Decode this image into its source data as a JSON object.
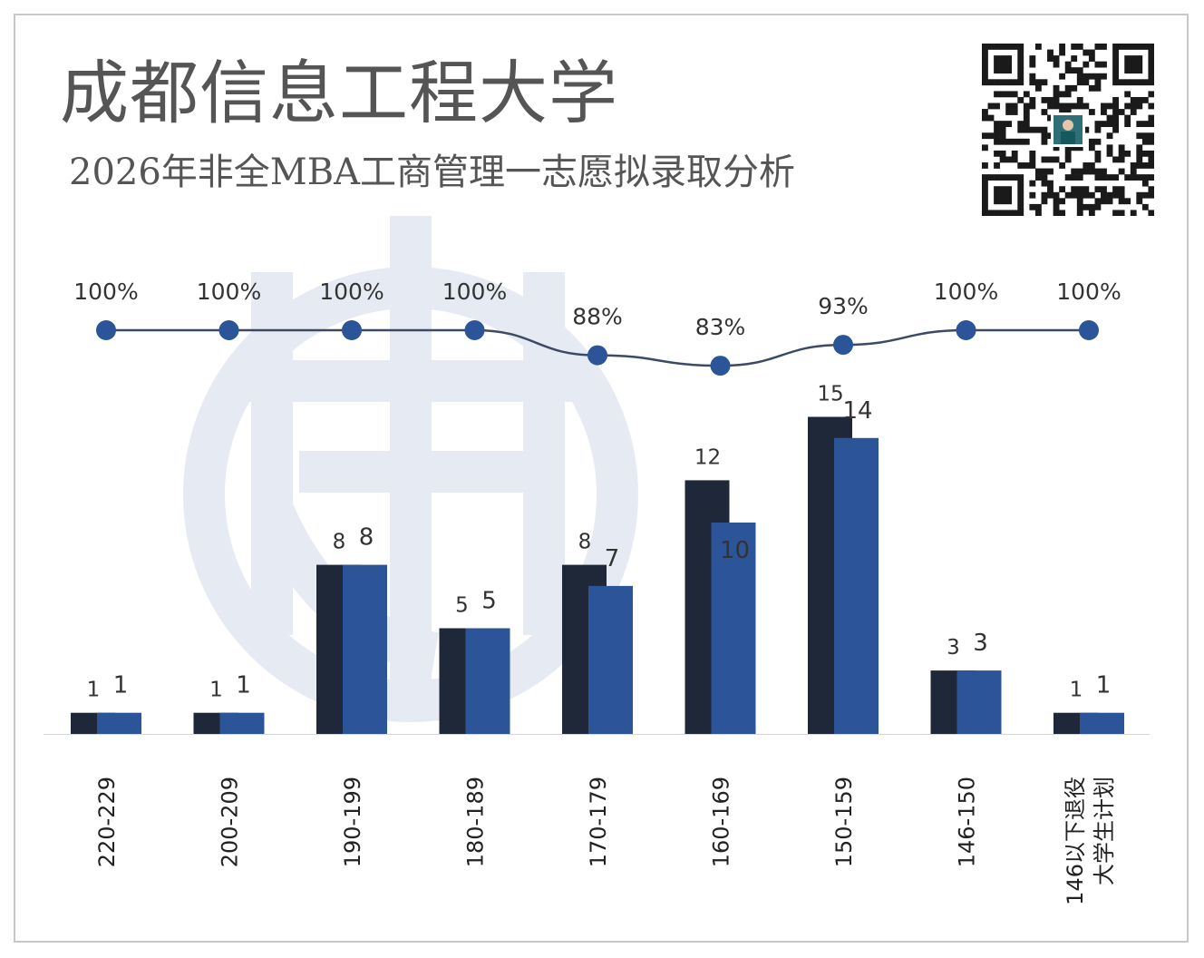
{
  "title": "成都信息工程大学",
  "subtitle": "2026年非全MBA工商管理一志愿拟录取分析",
  "colors": {
    "series1": "#1f2838",
    "series2": "#2b5598",
    "line": "#3c4a66",
    "point": "#2b5598",
    "watermark": "#e6ebf3"
  },
  "icons": {
    "qr": "qr-code-icon",
    "watermark": "logo-watermark-icon"
  },
  "chart_data": {
    "type": "bar",
    "categories": [
      "220-229",
      "200-209",
      "190-199",
      "180-189",
      "170-179",
      "160-169",
      "150-159",
      "146-150",
      "146以下退役大学生计划"
    ],
    "category_lines": [
      [
        "220-229"
      ],
      [
        "200-209"
      ],
      [
        "190-199"
      ],
      [
        "180-189"
      ],
      [
        "170-179"
      ],
      [
        "160-169"
      ],
      [
        "150-159"
      ],
      [
        "146-150"
      ],
      [
        "146以下退役",
        "大学生计划"
      ]
    ],
    "series": [
      {
        "values": [
          1,
          1,
          8,
          5,
          8,
          12,
          15,
          3,
          1
        ]
      },
      {
        "values": [
          1,
          1,
          8,
          5,
          7,
          10,
          14,
          3,
          1
        ]
      }
    ],
    "line_series": {
      "type": "line",
      "values": [
        100,
        100,
        100,
        100,
        88,
        83,
        93,
        100,
        100
      ],
      "labels": [
        "100%",
        "100%",
        "100%",
        "100%",
        "88%",
        "83%",
        "93%",
        "100%",
        "100%"
      ]
    },
    "ylim": [
      0,
      16
    ],
    "legend": "none",
    "grid": false,
    "xlabel": "",
    "ylabel": ""
  }
}
